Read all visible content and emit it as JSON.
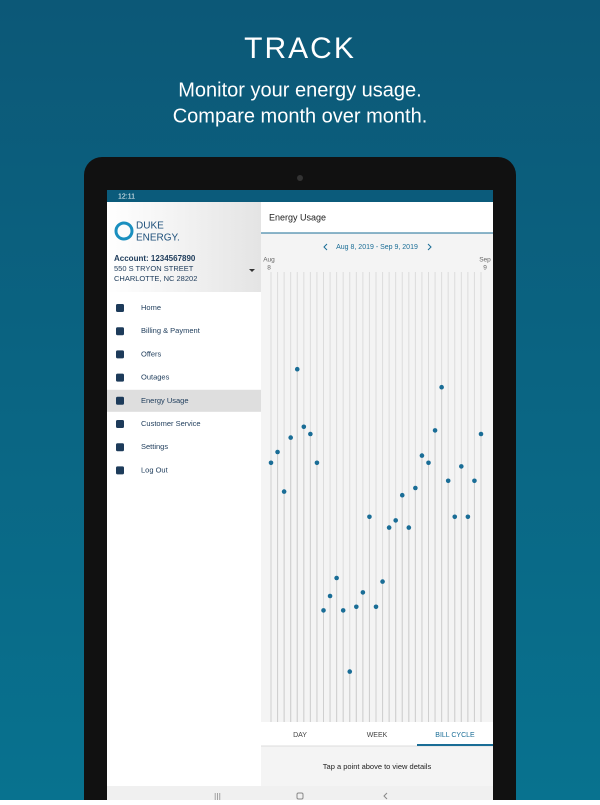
{
  "header": {
    "title": "TRACK",
    "subtitle": [
      "Monitor your energy usage.",
      "Compare month over month."
    ]
  },
  "status_bar": {
    "time": "12:11"
  },
  "sidebar": {
    "logo": [
      "DUKE",
      "ENERGY."
    ],
    "account": "Account: 1234567890",
    "address": [
      "550 S TRYON STREET",
      "CHARLOTTE, NC 28202"
    ],
    "menu": [
      "Home",
      "Billing & Payment",
      "Offers",
      "Outages",
      "Energy Usage",
      "Customer Service",
      "Settings",
      "Log Out"
    ],
    "selected": 4
  },
  "screen_title": "Energy Usage",
  "chart_data": {
    "type": "lollipop",
    "date_range": "Aug 8, 2019 - Sep 9, 2019",
    "start_label": [
      "Aug",
      "8"
    ],
    "end_label": [
      "Sep",
      "9"
    ],
    "values": [
      72,
      75,
      64,
      79,
      98,
      82,
      80,
      72,
      31,
      35,
      40,
      31,
      14,
      32,
      36,
      57,
      32,
      39,
      54,
      56,
      63,
      54,
      65,
      74,
      72,
      81,
      93,
      67,
      57,
      71,
      57,
      67,
      80
    ],
    "ylim": [
      0,
      100
    ],
    "color": "#1a6d96"
  },
  "tabs": [
    "DAY",
    "WEEK",
    "BILL CYCLE"
  ],
  "selected_tab": 2,
  "hint": "Tap a point above to view details"
}
